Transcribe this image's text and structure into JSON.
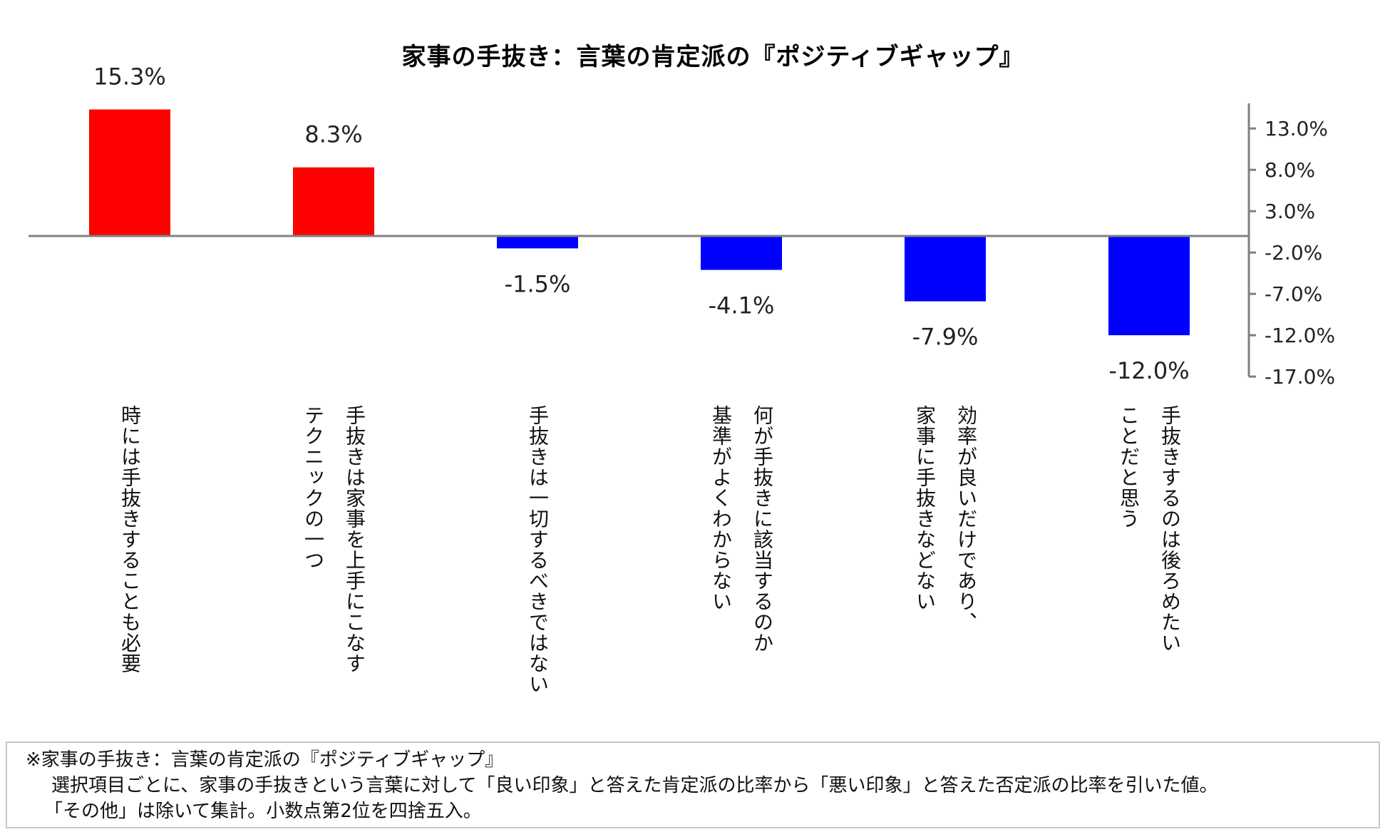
{
  "chart_data": {
    "type": "bar",
    "title": "家事の手抜き：言葉の肯定派の『ポジティブギャップ』",
    "categories": [
      "時には手抜きすることも必要",
      "手抜きは家事を上手にこなす\nテクニックの一つ",
      "手抜きは一切するべきではない",
      "何が手抜きに該当するのか\n基準がよくわからない",
      "効率が良いだけであり、\n家事に手抜きなどない",
      "手抜きするのは後ろめたい\nことだと思う"
    ],
    "values": [
      15.3,
      8.3,
      -1.5,
      -4.1,
      -7.9,
      -12.0
    ],
    "value_labels": [
      "15.3%",
      "8.3%",
      "-1.5%",
      "-4.1%",
      "-7.9%",
      "-12.0%"
    ],
    "ylim": [
      -17.0,
      15.0
    ],
    "yticks": [
      13.0,
      8.0,
      3.0,
      -2.0,
      -7.0,
      -12.0,
      -17.0
    ],
    "ytick_labels": [
      "13.0%",
      "8.0%",
      "3.0%",
      "-2.0%",
      "-7.0%",
      "-12.0%",
      "-17.0%"
    ],
    "y_axis_side": "right",
    "grid": false,
    "legend": "none",
    "colors": {
      "positive": "#ff0000",
      "negative": "#0000ff",
      "axis": "#808080"
    }
  },
  "note": {
    "line1": "※家事の手抜き：言葉の肯定派の『ポジティブギャップ』",
    "line2": "選択項目ごとに、家事の手抜きという言葉に対して「良い印象」と答えた肯定派の比率から「悪い印象」と答えた否定派の比率を引いた値。",
    "line3": "「その他」は除いて集計。小数点第2位を四捨五入。"
  }
}
